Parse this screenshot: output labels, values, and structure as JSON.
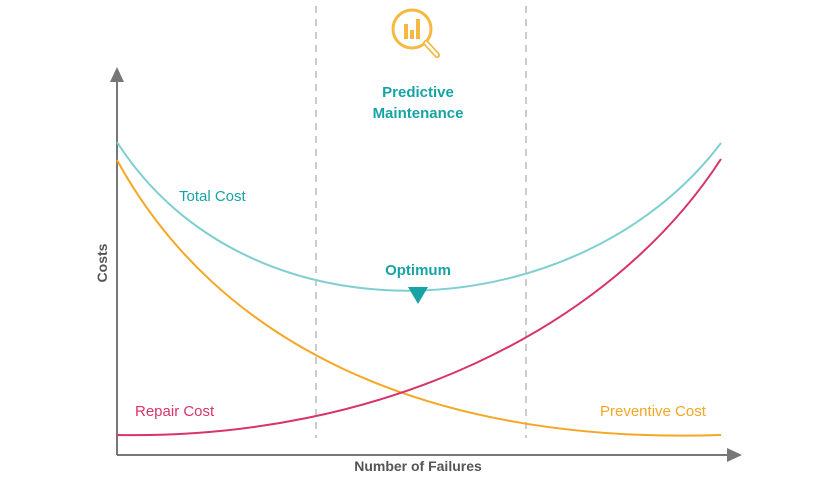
{
  "chart_data": {
    "type": "line",
    "xlabel": "Number of Failures",
    "ylabel": "Costs",
    "region_title": [
      "Predictive",
      "Maintenance"
    ],
    "annotation": "Optimum",
    "series": [
      {
        "name": "Total Cost",
        "color": "#7fcfd2"
      },
      {
        "name": "Repair Cost",
        "color": "#d8336a"
      },
      {
        "name": "Preventive Cost",
        "color": "#f5a623"
      }
    ]
  },
  "colors": {
    "axis": "#777777",
    "grid_dashed": "#bbbbbb",
    "accent_teal": "#17a3a5",
    "icon_yellow": "#f5b942"
  },
  "icons": {
    "region_icon": "magnifier-bar-chart-icon",
    "optimum_marker": "triangle-down-icon"
  }
}
